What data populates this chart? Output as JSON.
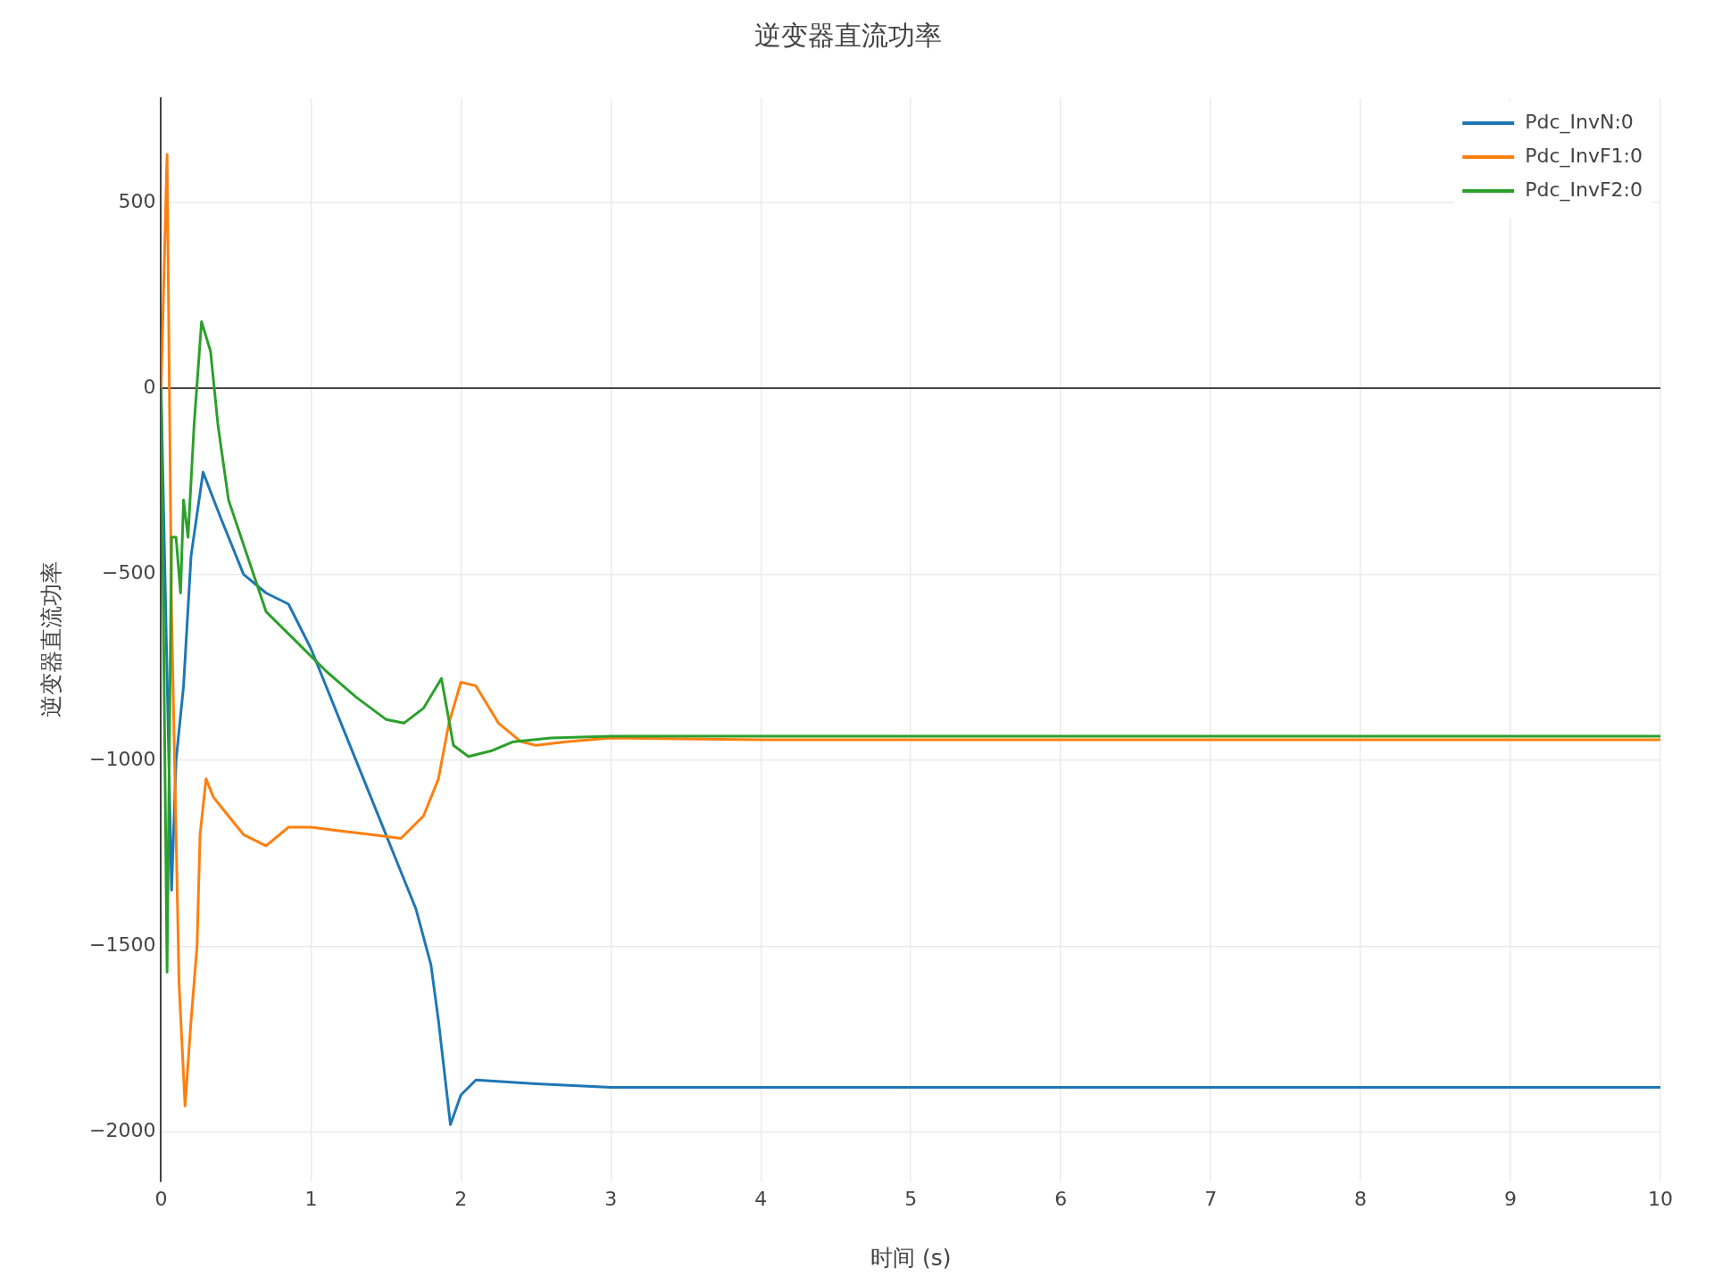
{
  "chart_data": {
    "type": "line",
    "title": "逆变器直流功率",
    "xlabel": "时间 (s)",
    "ylabel": "逆变器直流功率",
    "xlim": [
      0,
      10
    ],
    "xticks": [
      0,
      1,
      2,
      3,
      4,
      5,
      6,
      7,
      8,
      9,
      10
    ],
    "ylim": [
      -2132,
      781
    ],
    "yticks": [
      -2000,
      -1500,
      -1000,
      -500,
      0,
      500
    ],
    "grid": true,
    "legend": "top right",
    "line_style": "solid",
    "marker": "none",
    "series": [
      {
        "name": "Pdc_InvN:0",
        "color": "#1f77b4",
        "x": [
          0,
          0.07,
          0.1,
          0.15,
          0.2,
          0.28,
          0.4,
          0.55,
          0.7,
          0.85,
          1.0,
          1.2,
          1.4,
          1.6,
          1.7,
          1.8,
          1.85,
          1.93,
          2.0,
          2.1,
          2.5,
          3,
          4,
          5,
          6,
          7,
          8,
          9,
          10
        ],
        "values": [
          0,
          -1350,
          -1000,
          -800,
          -450,
          -225,
          -350,
          -500,
          -550,
          -580,
          -700,
          -900,
          -1100,
          -1300,
          -1400,
          -1550,
          -1700,
          -1980,
          -1900,
          -1860,
          -1870,
          -1880,
          -1880,
          -1880,
          -1880,
          -1880,
          -1880,
          -1880,
          -1880
        ]
      },
      {
        "name": "Pdc_InvF1:0",
        "color": "#ff7f0e",
        "x": [
          0,
          0.04,
          0.07,
          0.09,
          0.12,
          0.15,
          0.16,
          0.2,
          0.24,
          0.26,
          0.3,
          0.35,
          0.45,
          0.55,
          0.7,
          0.85,
          1.0,
          1.2,
          1.4,
          1.6,
          1.75,
          1.85,
          1.92,
          2.0,
          2.1,
          2.25,
          2.4,
          2.5,
          2.7,
          3,
          4,
          5,
          6,
          7,
          8,
          9,
          10
        ],
        "values": [
          0,
          630,
          -600,
          -1000,
          -1600,
          -1850,
          -1930,
          -1700,
          -1500,
          -1200,
          -1050,
          -1100,
          -1150,
          -1200,
          -1230,
          -1180,
          -1180,
          -1190,
          -1200,
          -1210,
          -1150,
          -1050,
          -900,
          -790,
          -800,
          -900,
          -950,
          -960,
          -950,
          -940,
          -945,
          -945,
          -945,
          -945,
          -945,
          -945,
          -945
        ]
      },
      {
        "name": "Pdc_InvF2:0",
        "color": "#2ca02c",
        "x": [
          0,
          0.04,
          0.07,
          0.1,
          0.13,
          0.15,
          0.18,
          0.22,
          0.27,
          0.33,
          0.38,
          0.45,
          0.6,
          0.7,
          0.9,
          1.1,
          1.3,
          1.5,
          1.62,
          1.75,
          1.87,
          1.95,
          2.05,
          2.2,
          2.35,
          2.6,
          3,
          4,
          5,
          6,
          7,
          8,
          9,
          10
        ],
        "values": [
          0,
          -1570,
          -400,
          -400,
          -550,
          -300,
          -400,
          -100,
          180,
          100,
          -100,
          -300,
          -480,
          -600,
          -680,
          -760,
          -830,
          -890,
          -900,
          -860,
          -780,
          -960,
          -990,
          -975,
          -950,
          -940,
          -935,
          -935,
          -935,
          -935,
          -935,
          -935,
          -935,
          -935
        ]
      }
    ]
  }
}
